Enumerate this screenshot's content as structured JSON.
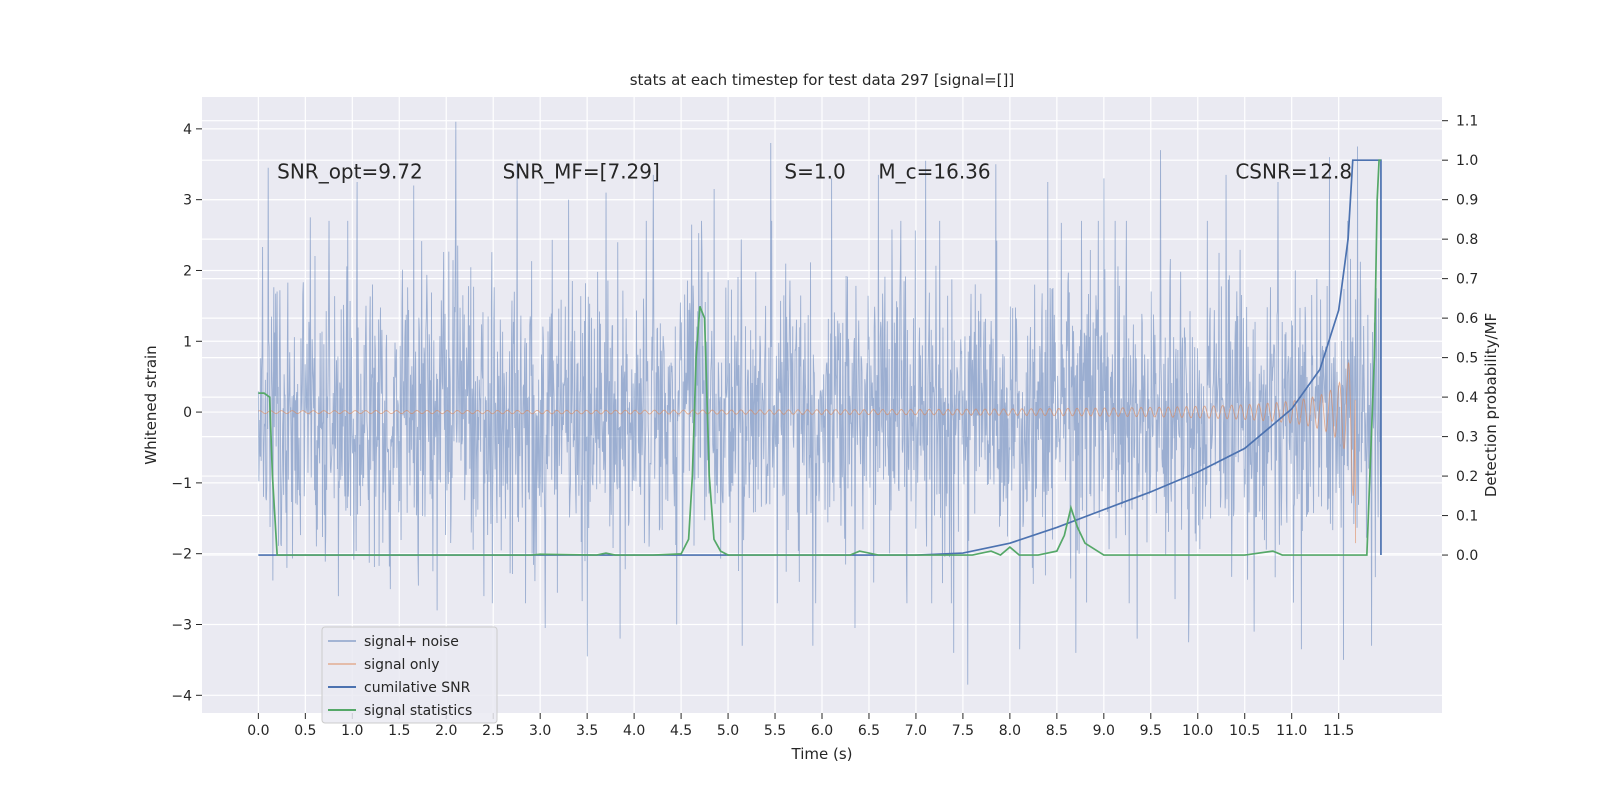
{
  "chart_data": {
    "type": "line",
    "title": "stats at each timestep for test data 297 [signal=[]]",
    "xlabel": "Time (s)",
    "ylabel_left": "Whitened strain",
    "ylabel_right": "Detection probability/MF",
    "xlim": [
      -0.6,
      12.6
    ],
    "ylim_left": [
      -4.25,
      4.45
    ],
    "ylim_right": [
      -0.4,
      1.16
    ],
    "x_ticks": [
      0.0,
      0.5,
      1.0,
      1.5,
      2.0,
      2.5,
      3.0,
      3.5,
      4.0,
      4.5,
      5.0,
      5.5,
      6.0,
      6.5,
      7.0,
      7.5,
      8.0,
      8.5,
      9.0,
      9.5,
      10.0,
      10.5,
      11.0,
      11.5
    ],
    "x_tick_labels": [
      "0.0",
      "0.5",
      "1.0",
      "1.5",
      "2.0",
      "2.5",
      "3.0",
      "3.5",
      "4.0",
      "4.5",
      "5.0",
      "5.5",
      "6.0",
      "6.5",
      "7.0",
      "7.5",
      "8.0",
      "8.5",
      "9.0",
      "9.5",
      "10.0",
      "10.5",
      "11.0",
      "11.5"
    ],
    "y_left_ticks": [
      -4,
      -3,
      -2,
      -1,
      0,
      1,
      2,
      3,
      4
    ],
    "y_left_tick_labels": [
      "−4",
      "−3",
      "−2",
      "−1",
      "0",
      "1",
      "2",
      "3",
      "4"
    ],
    "y_right_ticks": [
      0.0,
      0.1,
      0.2,
      0.3,
      0.4,
      0.5,
      0.6,
      0.7,
      0.8,
      0.9,
      1.0,
      1.1
    ],
    "y_right_tick_labels": [
      "0.0",
      "0.1",
      "0.2",
      "0.3",
      "0.4",
      "0.5",
      "0.6",
      "0.7",
      "0.8",
      "0.9",
      "1.0",
      "1.1"
    ],
    "grid": true,
    "legend_position": "lower-left",
    "annotations": [
      {
        "x": 0.2,
        "y": 3.3,
        "text": "SNR_opt=9.72"
      },
      {
        "x": 2.6,
        "y": 3.3,
        "text": "SNR_MF=[7.29]"
      },
      {
        "x": 5.6,
        "y": 3.3,
        "text": "S=1.0"
      },
      {
        "x": 6.6,
        "y": 3.3,
        "text": "M_c=16.36"
      },
      {
        "x": 10.4,
        "y": 3.3,
        "text": "CSNR=12.8"
      }
    ],
    "series": [
      {
        "name": "signal+ noise",
        "axis": "left",
        "color": "#4c72b0",
        "opacity": 0.5,
        "x_range": [
          0.0,
          11.95
        ],
        "amplitude_std": 1.0,
        "peaks": [
          {
            "x": 0.1,
            "y": 3.45
          },
          {
            "x": 0.3,
            "y": -2.2
          },
          {
            "x": 0.55,
            "y": 2.75
          },
          {
            "x": 0.85,
            "y": -2.6
          },
          {
            "x": 1.05,
            "y": 3.25
          },
          {
            "x": 1.4,
            "y": -2.5
          },
          {
            "x": 1.65,
            "y": 3.2
          },
          {
            "x": 1.9,
            "y": -2.8
          },
          {
            "x": 2.1,
            "y": 4.1
          },
          {
            "x": 2.4,
            "y": -2.6
          },
          {
            "x": 2.75,
            "y": 3.55
          },
          {
            "x": 3.05,
            "y": -3.05
          },
          {
            "x": 3.3,
            "y": 3.0
          },
          {
            "x": 3.5,
            "y": -3.45
          },
          {
            "x": 3.7,
            "y": 3.1
          },
          {
            "x": 3.85,
            "y": -3.2
          },
          {
            "x": 4.2,
            "y": 3.35
          },
          {
            "x": 4.45,
            "y": -3.0
          },
          {
            "x": 4.85,
            "y": 3.15
          },
          {
            "x": 5.15,
            "y": -3.3
          },
          {
            "x": 5.45,
            "y": 3.8
          },
          {
            "x": 5.9,
            "y": -3.3
          },
          {
            "x": 6.1,
            "y": 3.3
          },
          {
            "x": 6.35,
            "y": -3.05
          },
          {
            "x": 6.6,
            "y": 3.35
          },
          {
            "x": 6.9,
            "y": -2.7
          },
          {
            "x": 7.1,
            "y": 3.55
          },
          {
            "x": 7.4,
            "y": -3.4
          },
          {
            "x": 7.55,
            "y": -3.85
          },
          {
            "x": 7.85,
            "y": 3.5
          },
          {
            "x": 8.1,
            "y": -3.35
          },
          {
            "x": 8.4,
            "y": 3.25
          },
          {
            "x": 8.7,
            "y": -3.4
          },
          {
            "x": 9.0,
            "y": 3.3
          },
          {
            "x": 9.35,
            "y": -3.2
          },
          {
            "x": 9.6,
            "y": 3.7
          },
          {
            "x": 9.9,
            "y": -3.25
          },
          {
            "x": 10.3,
            "y": 3.35
          },
          {
            "x": 10.6,
            "y": -3.1
          },
          {
            "x": 10.85,
            "y": 3.25
          },
          {
            "x": 11.1,
            "y": -3.35
          },
          {
            "x": 11.4,
            "y": 3.6
          },
          {
            "x": 11.55,
            "y": -3.5
          },
          {
            "x": 11.7,
            "y": 3.75
          },
          {
            "x": 11.85,
            "y": -3.3
          }
        ]
      },
      {
        "name": "signal only",
        "axis": "left",
        "color": "#dd8452",
        "opacity": 0.6,
        "x_range": [
          0.0,
          11.68
        ],
        "chirp_end": 11.68,
        "max_amplitude": 1.8,
        "min_at_end": -1.85
      },
      {
        "name": "cumilative SNR",
        "axis": "right",
        "color": "#4c72b0",
        "x": [
          0.0,
          5.0,
          7.0,
          7.5,
          8.0,
          8.5,
          9.0,
          9.5,
          10.0,
          10.5,
          11.0,
          11.3,
          11.5,
          11.6,
          11.65,
          11.95,
          11.95
        ],
        "y": [
          0.0,
          0.0,
          0.0,
          0.005,
          0.03,
          0.07,
          0.115,
          0.16,
          0.21,
          0.27,
          0.37,
          0.47,
          0.62,
          0.8,
          1.0,
          1.0,
          0.0
        ]
      },
      {
        "name": "signal statistics",
        "axis": "right",
        "color": "#55a868",
        "x": [
          0.0,
          0.06,
          0.12,
          0.15,
          0.2,
          0.3,
          1.0,
          2.0,
          2.9,
          3.0,
          3.6,
          3.7,
          3.8,
          4.2,
          4.5,
          4.58,
          4.62,
          4.66,
          4.7,
          4.75,
          4.8,
          4.85,
          4.92,
          5.0,
          5.2,
          6.3,
          6.4,
          6.6,
          7.6,
          7.8,
          7.9,
          8.0,
          8.1,
          8.15,
          8.3,
          8.5,
          8.58,
          8.65,
          8.72,
          8.8,
          9.0,
          10.5,
          10.8,
          10.9,
          11.0,
          11.8,
          11.88,
          11.91,
          11.93,
          11.95
        ],
        "y": [
          0.41,
          0.41,
          0.4,
          0.2,
          0.0,
          0.0,
          0.0,
          0.0,
          0.0,
          0.002,
          0.0,
          0.005,
          0.0,
          0.0,
          0.003,
          0.04,
          0.2,
          0.5,
          0.63,
          0.6,
          0.2,
          0.04,
          0.01,
          0.0,
          0.0,
          0.0,
          0.01,
          0.0,
          0.0,
          0.01,
          0.0,
          0.02,
          0.0,
          0.0,
          0.0,
          0.01,
          0.05,
          0.12,
          0.07,
          0.03,
          0.0,
          0.0,
          0.01,
          0.0,
          0.0,
          0.0,
          0.5,
          0.9,
          1.0,
          1.0
        ]
      }
    ]
  }
}
